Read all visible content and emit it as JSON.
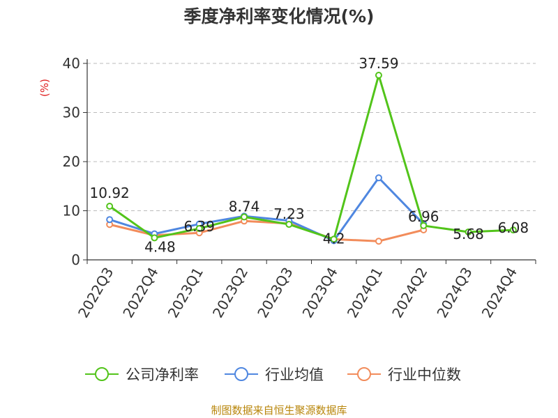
{
  "chart_data": {
    "type": "line",
    "title": "季度净利率变化情况(%)",
    "ylabel": "(%)",
    "xlabel": "",
    "categories": [
      "2022Q3",
      "2022Q4",
      "2023Q1",
      "2023Q2",
      "2023Q3",
      "2023Q4",
      "2024Q1",
      "2024Q2",
      "2024Q3",
      "2024Q4"
    ],
    "ylim": [
      0,
      40
    ],
    "yticks": [
      0,
      10,
      20,
      30,
      40
    ],
    "grid": true,
    "legend_position": "bottom",
    "series": [
      {
        "name": "公司净利率",
        "color": "#52c41a",
        "values": [
          10.92,
          4.48,
          6.39,
          8.74,
          7.23,
          4.2,
          37.59,
          6.96,
          5.68,
          6.08
        ],
        "labels": [
          "10.92",
          "4.48",
          "6.39",
          "8.74",
          "7.23",
          "4.2",
          "37.59",
          "6.96",
          "5.68",
          "6.08"
        ]
      },
      {
        "name": "行业均值",
        "color": "#4f87e0",
        "values": [
          8.2,
          5.3,
          7.3,
          8.9,
          8.0,
          3.9,
          16.7,
          7.3,
          null,
          null
        ]
      },
      {
        "name": "行业中位数",
        "color": "#f28c5b",
        "values": [
          7.2,
          5.0,
          5.5,
          7.9,
          7.4,
          4.2,
          3.8,
          6.1,
          null,
          null
        ]
      }
    ]
  },
  "source": "制图数据来自恒生聚源数据库"
}
